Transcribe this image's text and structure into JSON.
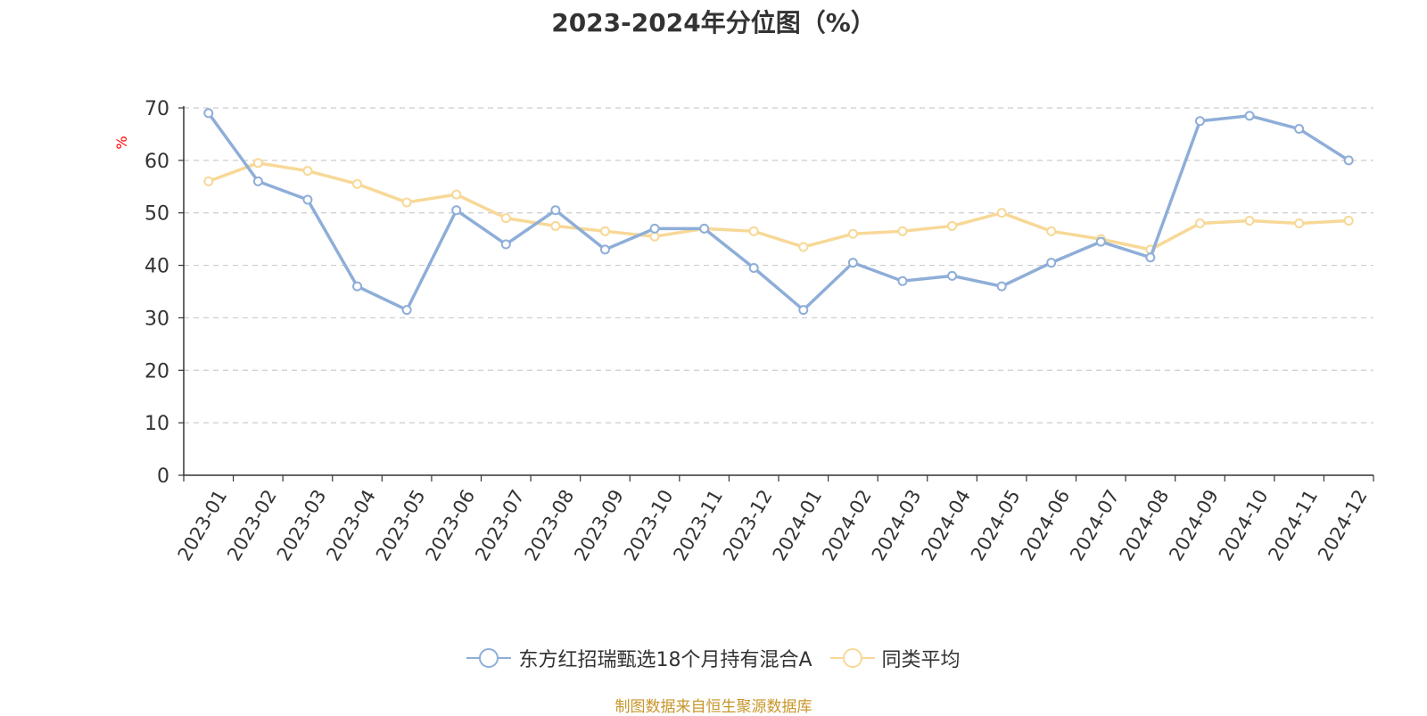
{
  "chart_data": {
    "type": "line",
    "title": "2023-2024年分位图（%）",
    "ylabel": "%",
    "xlabel": "",
    "ylim": [
      0,
      70
    ],
    "yticks": [
      0,
      10,
      20,
      30,
      40,
      50,
      60,
      70
    ],
    "grid": true,
    "legend_position": "bottom",
    "categories": [
      "2023-01",
      "2023-02",
      "2023-03",
      "2023-04",
      "2023-05",
      "2023-06",
      "2023-07",
      "2023-08",
      "2023-09",
      "2023-10",
      "2023-11",
      "2023-12",
      "2024-01",
      "2024-02",
      "2024-03",
      "2024-04",
      "2024-05",
      "2024-06",
      "2024-07",
      "2024-08",
      "2024-09",
      "2024-10",
      "2024-11",
      "2024-12"
    ],
    "series": [
      {
        "name": "东方红招瑞甄选18个月持有混合A",
        "color": "#8eaed8",
        "values": [
          69,
          56,
          52.5,
          36,
          31.5,
          50.5,
          44,
          50.5,
          43,
          47,
          47,
          39.5,
          31.5,
          40.5,
          37,
          38,
          36,
          40.5,
          44.5,
          41.5,
          67.5,
          68.5,
          66,
          60
        ]
      },
      {
        "name": "同类平均",
        "color": "#f7d897",
        "values": [
          56,
          59.5,
          58,
          55.5,
          52,
          53.5,
          49,
          47.5,
          46.5,
          45.5,
          47,
          46.5,
          43.5,
          46,
          46.5,
          47.5,
          50,
          46.5,
          45,
          43,
          48,
          48.5,
          48,
          48.5
        ]
      }
    ]
  },
  "source": "制图数据来自恒生聚源数据库"
}
